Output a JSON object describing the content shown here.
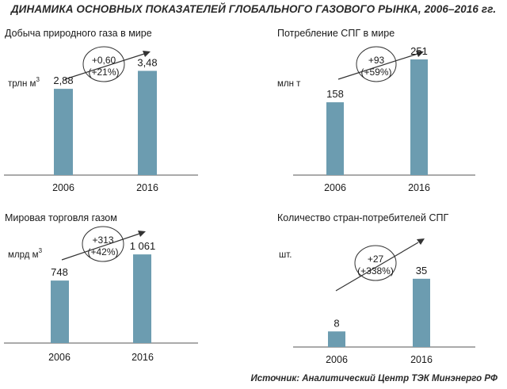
{
  "title": "ДИНАМИКА ОСНОВНЫХ ПОКАЗАТЕЛЕЙ ГЛОБАЛЬНОГО ГАЗОВОГО РЫНКА, 2006–2016 гг.",
  "source": "Источник: Аналитический Центр ТЭК Минэнерго РФ",
  "colors": {
    "bar": "#6c9cb0",
    "axis": "#555555"
  },
  "chart_data": [
    {
      "type": "bar",
      "title": "Добыча природного газа в мире",
      "unit": "трлн м",
      "unit_sup": "3",
      "categories": [
        "2006",
        "2016"
      ],
      "values": [
        2.88,
        3.48
      ],
      "labels": [
        "2,88",
        "3,48"
      ],
      "annotation": [
        "+0,60",
        "(+21%)"
      ],
      "ylim": [
        0,
        3.65
      ]
    },
    {
      "type": "bar",
      "title": "Потребление СПГ в мире",
      "unit": "млн т",
      "unit_sup": "",
      "categories": [
        "2006",
        "2016"
      ],
      "values": [
        158,
        251
      ],
      "labels": [
        "158",
        "251"
      ],
      "annotation": [
        "+93",
        "(+59%)"
      ],
      "ylim": [
        0,
        263
      ]
    },
    {
      "type": "bar",
      "title": "Мировая торговля газом",
      "unit": "млрд м",
      "unit_sup": "3",
      "categories": [
        "2006",
        "2016"
      ],
      "values": [
        748,
        1061
      ],
      "labels": [
        "748",
        "1 061"
      ],
      "annotation": [
        "+313",
        "(+42%)"
      ],
      "ylim": [
        0,
        1100
      ]
    },
    {
      "type": "bar",
      "title": "Количество стран-потребителей СПГ",
      "unit": "шт.",
      "unit_sup": "",
      "categories": [
        "2006",
        "2016"
      ],
      "values": [
        8,
        35
      ],
      "labels": [
        "8",
        "35"
      ],
      "annotation": [
        "+27",
        "(+338%)"
      ],
      "ylim": [
        0,
        39
      ]
    }
  ]
}
